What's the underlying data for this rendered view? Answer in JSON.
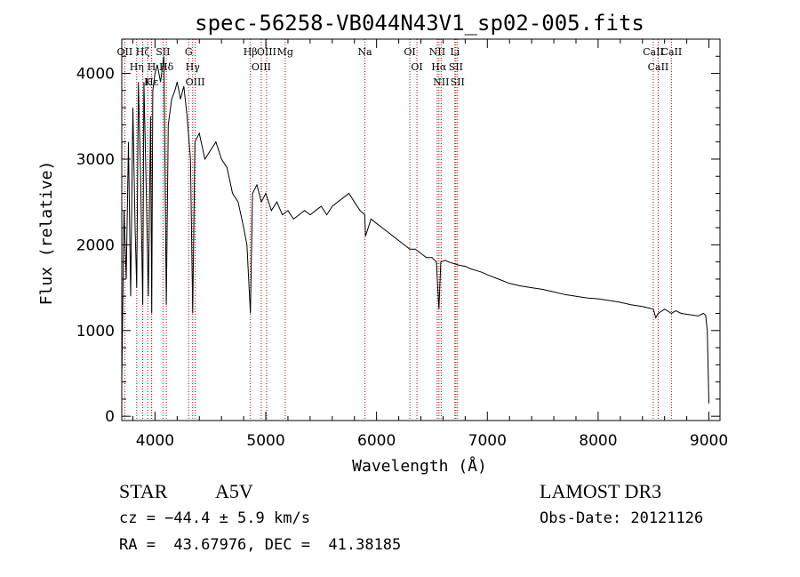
{
  "chart_data": {
    "type": "line",
    "title": "spec-56258-VB044N43V1_sp02-005.fits",
    "xlabel": "Wavelength (Å)",
    "ylabel": "Flux (relative)",
    "xlim": [
      3700,
      9100
    ],
    "ylim": [
      -50,
      4400
    ],
    "x_ticks": [
      4000,
      5000,
      6000,
      7000,
      8000,
      9000
    ],
    "y_ticks": [
      0,
      1000,
      2000,
      3000,
      4000
    ],
    "series": [
      {
        "name": "spectrum",
        "x": [
          3700,
          3720,
          3740,
          3760,
          3780,
          3800,
          3820,
          3835,
          3850,
          3870,
          3889,
          3900,
          3920,
          3940,
          3960,
          3970,
          3980,
          4000,
          4020,
          4050,
          4080,
          4102,
          4120,
          4150,
          4180,
          4200,
          4230,
          4260,
          4290,
          4320,
          4340,
          4360,
          4400,
          4450,
          4500,
          4550,
          4600,
          4650,
          4700,
          4750,
          4800,
          4830,
          4861,
          4880,
          4920,
          4960,
          5000,
          5050,
          5100,
          5150,
          5200,
          5250,
          5300,
          5350,
          5400,
          5450,
          5500,
          5550,
          5600,
          5650,
          5700,
          5750,
          5800,
          5850,
          5893,
          5900,
          5950,
          6000,
          6050,
          6100,
          6150,
          6200,
          6250,
          6300,
          6350,
          6400,
          6450,
          6500,
          6540,
          6563,
          6580,
          6620,
          6650,
          6700,
          6750,
          6800,
          6850,
          6900,
          6950,
          7000,
          7100,
          7200,
          7300,
          7400,
          7500,
          7600,
          7700,
          7800,
          7900,
          8000,
          8100,
          8200,
          8300,
          8400,
          8498,
          8520,
          8542,
          8600,
          8662,
          8700,
          8750,
          8800,
          8850,
          8900,
          8950,
          8970,
          8985,
          9000
        ],
        "values": [
          400,
          2400,
          1600,
          3200,
          1400,
          3600,
          2200,
          1500,
          3900,
          2800,
          1300,
          3900,
          2700,
          1400,
          3500,
          1200,
          3800,
          4000,
          4100,
          3900,
          4200,
          1300,
          3400,
          3700,
          3800,
          3900,
          3700,
          3850,
          3500,
          3000,
          1200,
          3200,
          3300,
          3000,
          3100,
          3200,
          3000,
          2900,
          2600,
          2500,
          2200,
          2000,
          1200,
          2600,
          2700,
          2500,
          2600,
          2400,
          2500,
          2350,
          2400,
          2300,
          2350,
          2400,
          2350,
          2400,
          2450,
          2350,
          2450,
          2500,
          2550,
          2600,
          2500,
          2400,
          2350,
          2100,
          2300,
          2250,
          2200,
          2150,
          2100,
          2050,
          2000,
          1950,
          1950,
          1900,
          1850,
          1850,
          1800,
          1250,
          1800,
          1820,
          1800,
          1780,
          1760,
          1750,
          1720,
          1700,
          1680,
          1650,
          1600,
          1550,
          1520,
          1500,
          1480,
          1450,
          1420,
          1400,
          1380,
          1370,
          1350,
          1330,
          1300,
          1280,
          1250,
          1150,
          1200,
          1250,
          1200,
          1230,
          1200,
          1190,
          1180,
          1170,
          1200,
          1180,
          1000,
          150
        ]
      }
    ],
    "lines": [
      {
        "label": "OII",
        "wavelength": 3727
      },
      {
        "label": "Hη",
        "wavelength": 3835
      },
      {
        "label": "Hζ",
        "wavelength": 3889
      },
      {
        "label": "K",
        "wavelength": 3934
      },
      {
        "label": "H",
        "wavelength": 3969
      },
      {
        "label": "Hε",
        "wavelength": 3970
      },
      {
        "label": "SII",
        "wavelength": 4072
      },
      {
        "label": "Hδ",
        "wavelength": 4102
      },
      {
        "label": "G",
        "wavelength": 4304
      },
      {
        "label": "Hγ",
        "wavelength": 4340
      },
      {
        "label": "OIII",
        "wavelength": 4363
      },
      {
        "label": "Hβ",
        "wavelength": 4861
      },
      {
        "label": "OIII",
        "wavelength": 4959
      },
      {
        "label": "OIII",
        "wavelength": 5007
      },
      {
        "label": "Mg",
        "wavelength": 5175
      },
      {
        "label": "Na",
        "wavelength": 5894
      },
      {
        "label": "OI",
        "wavelength": 6300
      },
      {
        "label": "OI",
        "wavelength": 6364
      },
      {
        "label": "NII",
        "wavelength": 6548
      },
      {
        "label": "Hα",
        "wavelength": 6563
      },
      {
        "label": "NII",
        "wavelength": 6583
      },
      {
        "label": "Li",
        "wavelength": 6707
      },
      {
        "label": "SII",
        "wavelength": 6716
      },
      {
        "label": "SII",
        "wavelength": 6731
      },
      {
        "label": "CaII",
        "wavelength": 8498
      },
      {
        "label": "CaII",
        "wavelength": 8542
      },
      {
        "label": "CaII",
        "wavelength": 8662
      }
    ]
  },
  "info": {
    "class_label": "STAR",
    "subclass": "A5V",
    "survey": "LAMOST DR3",
    "cz": "cz = −44.4 ± 5.9 km/s",
    "obs_date": "Obs-Date: 20121126",
    "coords": "RA =  43.67976, DEC =  41.38185"
  },
  "colors": {
    "spectrum": "#000000",
    "line_markers": "#cc0000"
  }
}
